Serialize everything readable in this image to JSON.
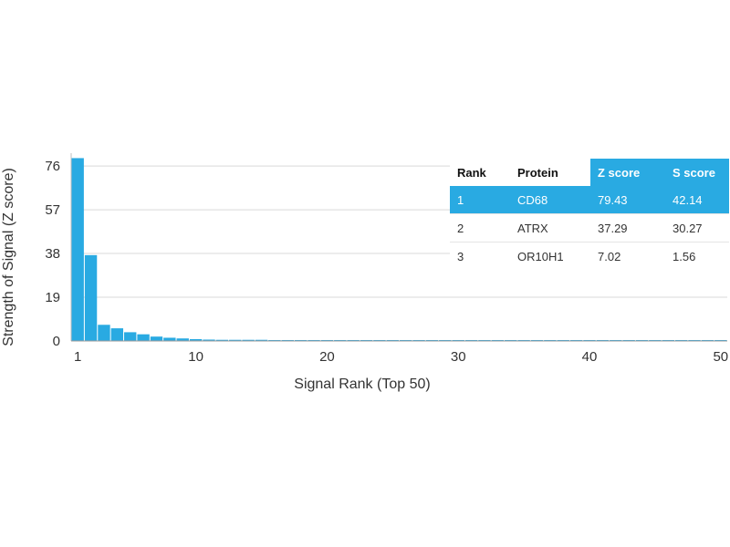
{
  "chart_data": {
    "type": "bar",
    "xlabel": "Signal Rank (Top 50)",
    "ylabel": "Strength of Signal (Z score)",
    "xlim": [
      1,
      50
    ],
    "ylim": [
      0,
      80
    ],
    "x_ticks": [
      1,
      10,
      20,
      30,
      40,
      50
    ],
    "y_ticks": [
      0,
      19,
      38,
      57,
      76
    ],
    "grid": true,
    "color": "#29aae2",
    "categories": [
      1,
      2,
      3,
      4,
      5,
      6,
      7,
      8,
      9,
      10,
      11,
      12,
      13,
      14,
      15,
      16,
      17,
      18,
      19,
      20,
      21,
      22,
      23,
      24,
      25,
      26,
      27,
      28,
      29,
      30,
      31,
      32,
      33,
      34,
      35,
      36,
      37,
      38,
      39,
      40,
      41,
      42,
      43,
      44,
      45,
      46,
      47,
      48,
      49,
      50
    ],
    "values": [
      79.43,
      37.29,
      7.02,
      5.5,
      3.8,
      2.9,
      1.9,
      1.4,
      1.1,
      0.8,
      0.6,
      0.5,
      0.5,
      0.5,
      0.5,
      0.4,
      0.4,
      0.4,
      0.4,
      0.4,
      0.4,
      0.4,
      0.4,
      0.4,
      0.4,
      0.4,
      0.4,
      0.4,
      0.4,
      0.4,
      0.4,
      0.4,
      0.4,
      0.4,
      0.4,
      0.4,
      0.4,
      0.4,
      0.4,
      0.4,
      0.4,
      0.4,
      0.4,
      0.4,
      0.4,
      0.4,
      0.4,
      0.4,
      0.4,
      0.4
    ]
  },
  "table": {
    "headers": [
      "Rank",
      "Protein",
      "Z score",
      "S score"
    ],
    "highlight_color": "#29aae2",
    "rows": [
      [
        "1",
        "CD68",
        "79.43",
        "42.14"
      ],
      [
        "2",
        "ATRX",
        "37.29",
        "30.27"
      ],
      [
        "3",
        "OR10H1",
        "7.02",
        "1.56"
      ]
    ]
  }
}
